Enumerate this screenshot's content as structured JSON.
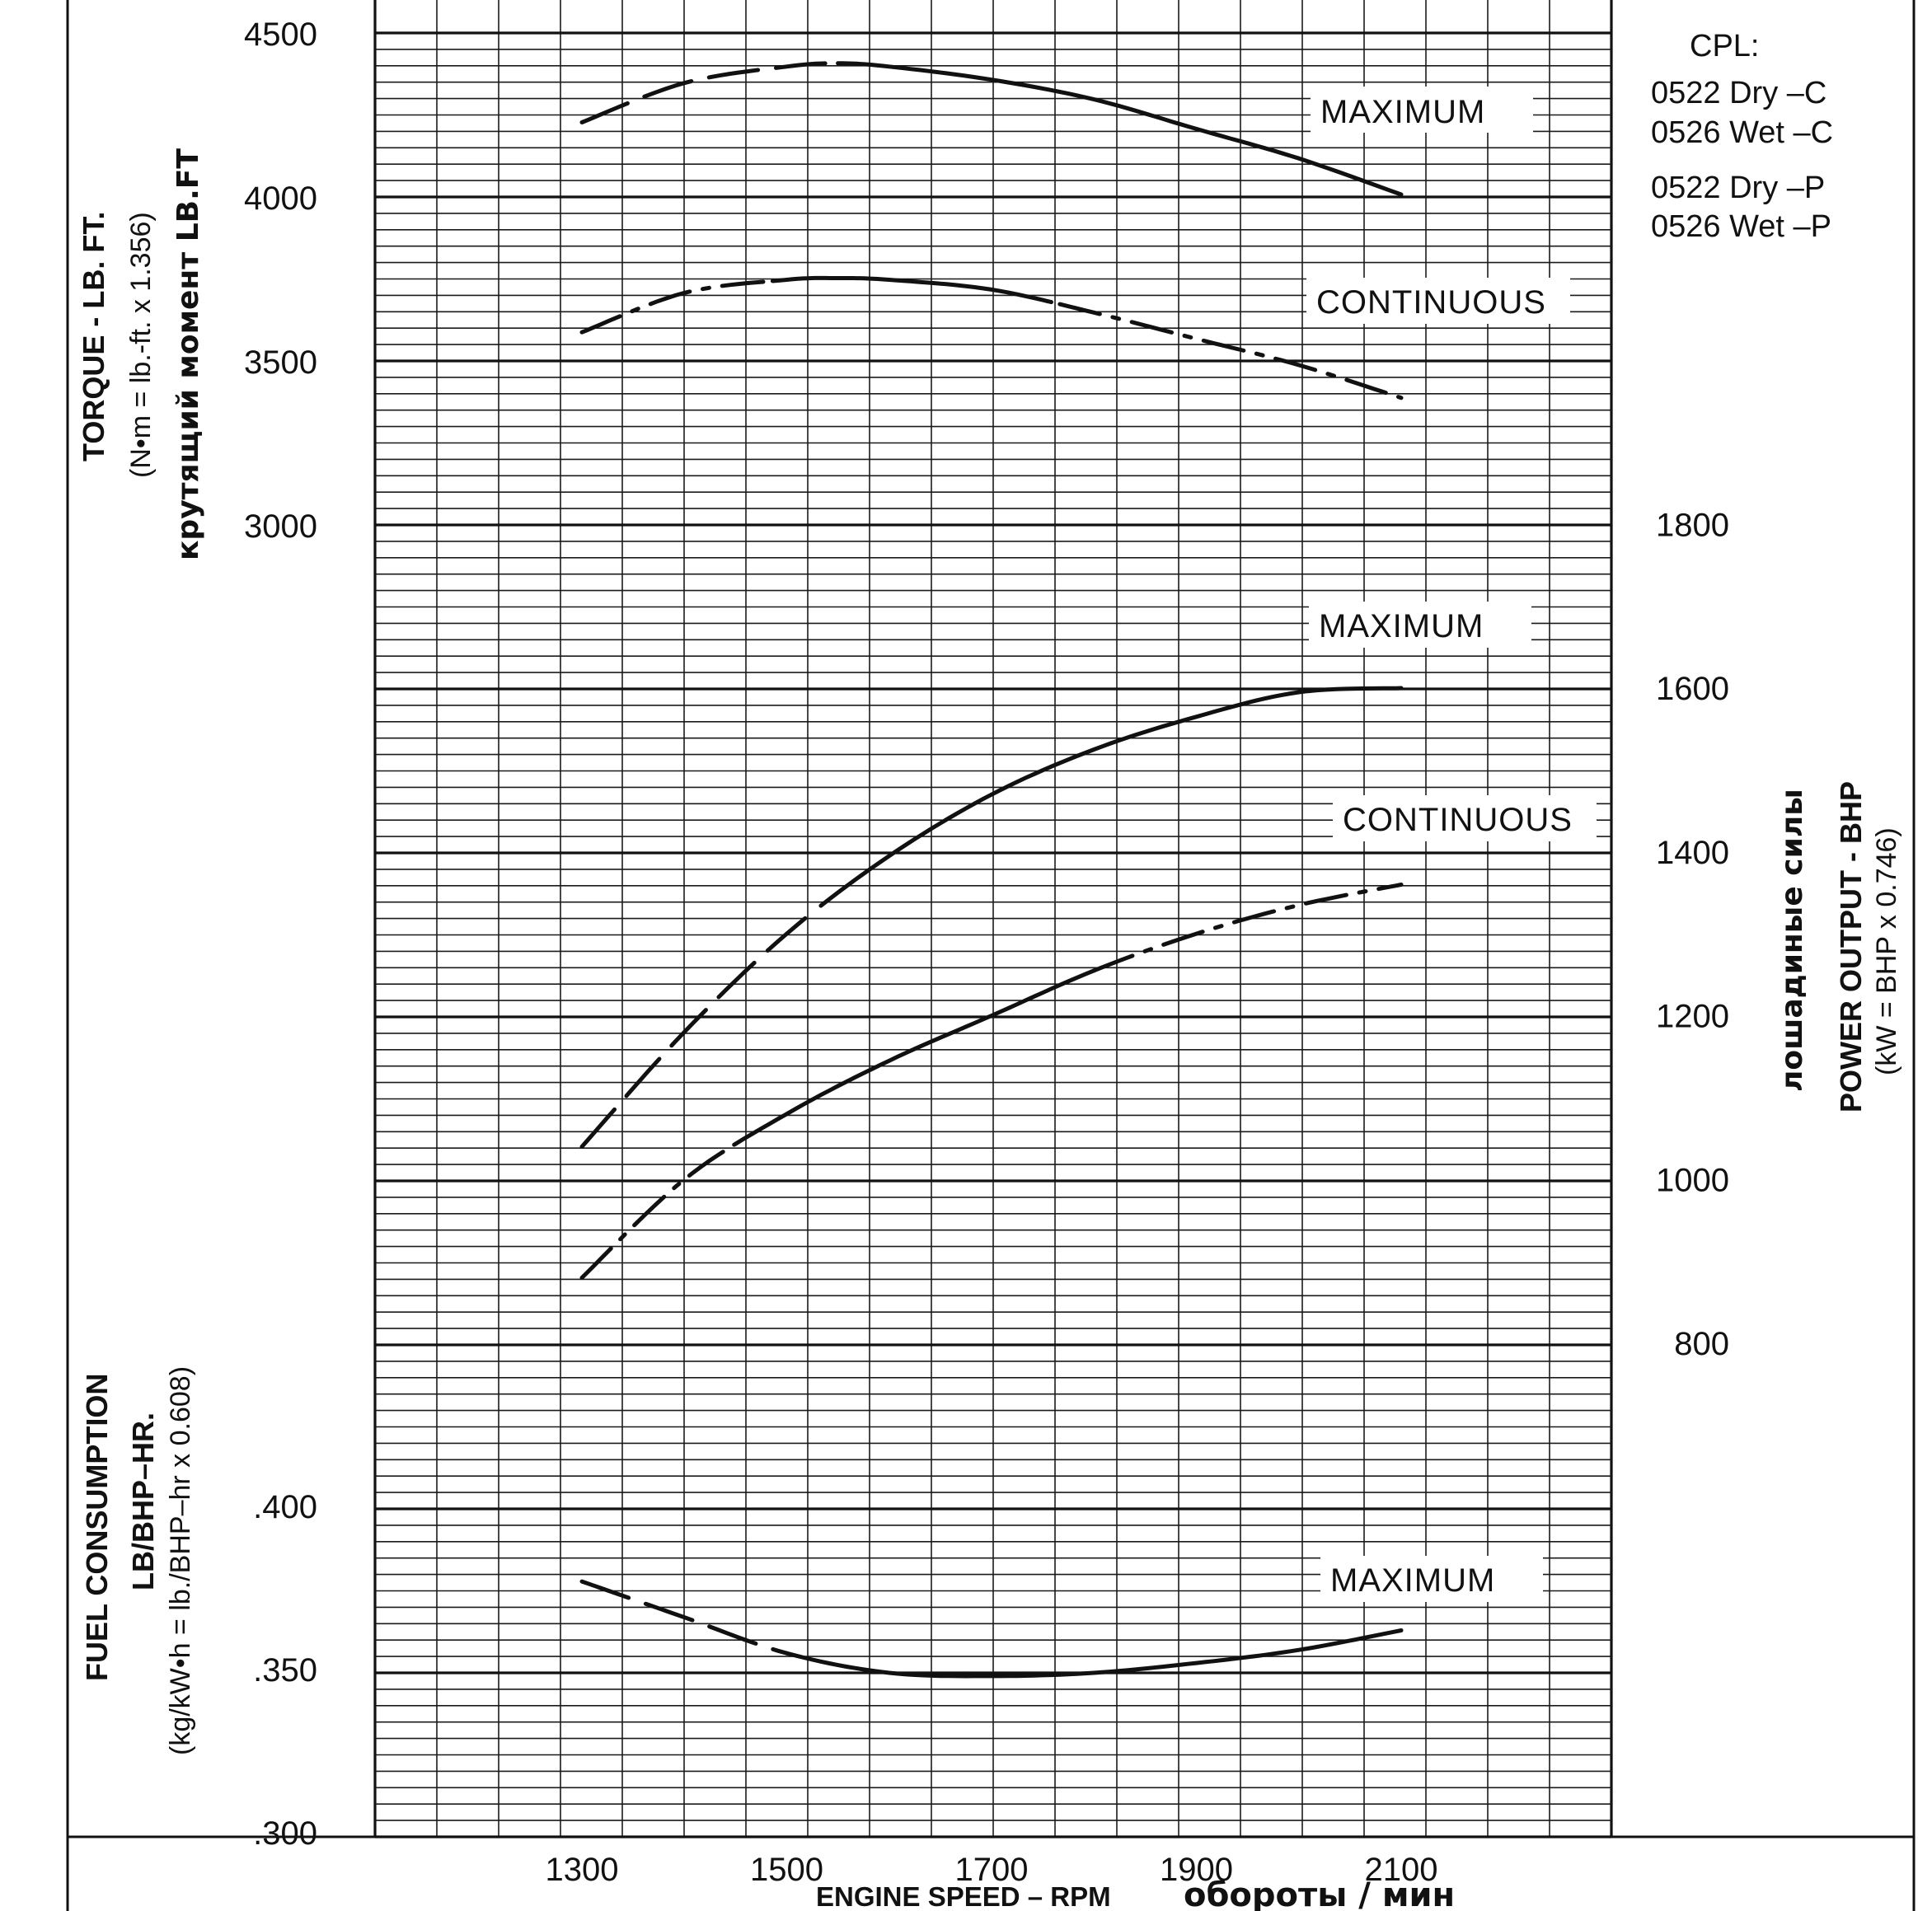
{
  "chart_data": [
    {
      "type": "line",
      "panel": "torque",
      "ylabel": "TORQUE - LB. FT.",
      "ylabel_sub": "(N•m = lb.-ft. x 1.356)",
      "ylabel_ru": "крутящий момент LB.FT",
      "ylim": [
        2500,
        4500
      ],
      "yticks": [
        4500,
        4000,
        3500,
        3000
      ],
      "series": [
        {
          "name": "MAXIMUM",
          "x": [
            1300,
            1400,
            1500,
            1550,
            1600,
            1700,
            1800,
            1900,
            2000,
            2100
          ],
          "values": [
            4230,
            4350,
            4400,
            4410,
            4400,
            4360,
            4300,
            4210,
            4120,
            4010
          ]
        },
        {
          "name": "CONTINUOUS",
          "x": [
            1300,
            1400,
            1500,
            1550,
            1600,
            1700,
            1800,
            1900,
            2000,
            2100
          ],
          "values": [
            3590,
            3710,
            3750,
            3755,
            3750,
            3720,
            3650,
            3570,
            3490,
            3390
          ]
        }
      ]
    },
    {
      "type": "line",
      "panel": "power",
      "ylabel": "POWER OUTPUT - BHP",
      "ylabel_sub": "(kW = BHP x 0.746)",
      "ylabel_ru": "лошадиные силы",
      "ylim": [
        600,
        1900
      ],
      "yticks": [
        1800,
        1600,
        1400,
        1200,
        1000,
        800
      ],
      "series": [
        {
          "name": "MAXIMUM",
          "x": [
            1300,
            1400,
            1500,
            1600,
            1700,
            1800,
            1900,
            2000,
            2100
          ],
          "values": [
            1040,
            1180,
            1300,
            1395,
            1470,
            1525,
            1565,
            1595,
            1600
          ]
        },
        {
          "name": "CONTINUOUS",
          "x": [
            1300,
            1400,
            1500,
            1600,
            1700,
            1800,
            1900,
            2000,
            2100
          ],
          "values": [
            880,
            1000,
            1080,
            1145,
            1200,
            1255,
            1300,
            1335,
            1360
          ]
        }
      ]
    },
    {
      "type": "line",
      "panel": "fuel",
      "ylabel": "FUEL CONSUMPTION",
      "ylabel_line2": "LB/BHP–HR.",
      "ylabel_sub": "(kg/kW•h = lb./BHP–hr x 0.608)",
      "ylim": [
        0.3,
        0.45
      ],
      "yticks": [
        ".400",
        ".350",
        ".300"
      ],
      "series": [
        {
          "name": "MAXIMUM",
          "x": [
            1300,
            1400,
            1500,
            1600,
            1700,
            1800,
            1900,
            2000,
            2100
          ],
          "values": [
            0.377,
            0.366,
            0.355,
            0.349,
            0.348,
            0.349,
            0.352,
            0.356,
            0.362
          ]
        }
      ]
    }
  ],
  "xaxis": {
    "ticks": [
      1300,
      1500,
      1700,
      1900,
      2100
    ],
    "xlim": [
      1100,
      2300
    ],
    "label": "ENGINE SPEED – RPM",
    "label_ru": "обороты / мин"
  },
  "curve_labels": {
    "torque_max": "MAXIMUM",
    "torque_cont": "CONTINUOUS",
    "power_max": "MAXIMUM",
    "power_cont": "CONTINUOUS",
    "fuel_max": "MAXIMUM"
  },
  "cpl": {
    "title": "CPL:",
    "lines": [
      "0522 Dry –C",
      "0526 Wet –C",
      "0522 Dry –P",
      "0526 Wet –P"
    ]
  },
  "colors": {
    "ink": "#111111",
    "paper": "#ffffff"
  }
}
